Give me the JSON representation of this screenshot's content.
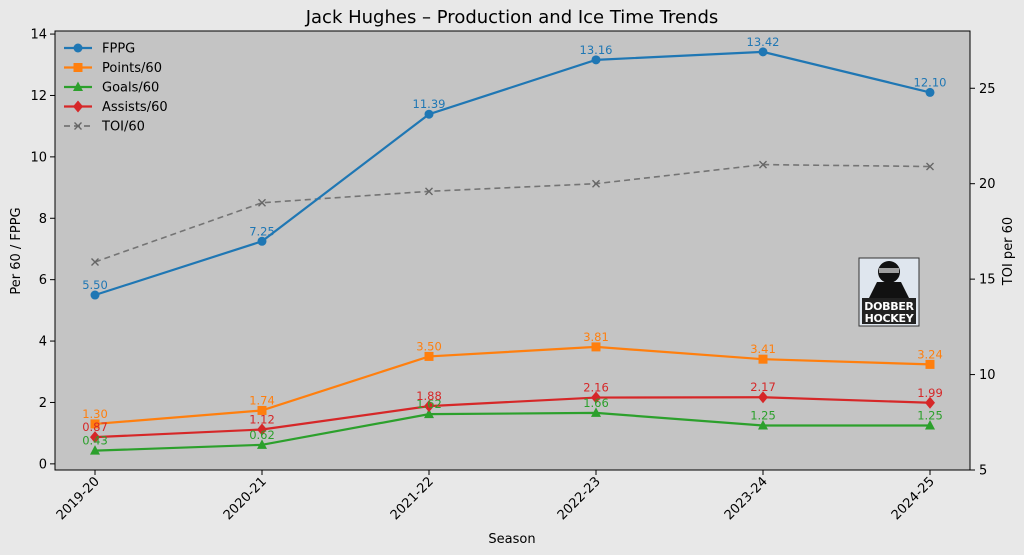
{
  "chart_data": {
    "type": "line",
    "title": "Jack Hughes – Production and Ice Time Trends",
    "xlabel": "Season",
    "ylabel": "Per 60 / FPPG",
    "ylabel_right": "TOI per 60",
    "categories": [
      "2019-20",
      "2020-21",
      "2021-22",
      "2022-23",
      "2023-24",
      "2024-25"
    ],
    "ylim": [
      -0.2,
      14.1
    ],
    "yticks": [
      0,
      2,
      4,
      6,
      8,
      10,
      12,
      14
    ],
    "ylim_right": [
      5,
      28
    ],
    "yticks_right": [
      5,
      10,
      15,
      20,
      25
    ],
    "legend_position": "top-left",
    "grid": false,
    "series": [
      {
        "name": "FPPG",
        "axis": "left",
        "color": "#1f77b4",
        "marker": "circle",
        "dashed": false,
        "labeled": true,
        "values": [
          5.5,
          7.25,
          11.39,
          13.16,
          13.42,
          12.1
        ],
        "labels": [
          "5.50",
          "7.25",
          "11.39",
          "13.16",
          "13.42",
          "12.10"
        ]
      },
      {
        "name": "Points/60",
        "axis": "left",
        "color": "#ff7f0e",
        "marker": "square",
        "dashed": false,
        "labeled": true,
        "values": [
          1.3,
          1.74,
          3.5,
          3.81,
          3.41,
          3.24
        ],
        "labels": [
          "1.30",
          "1.74",
          "3.50",
          "3.81",
          "3.41",
          "3.24"
        ]
      },
      {
        "name": "Goals/60",
        "axis": "left",
        "color": "#2ca02c",
        "marker": "triangle",
        "dashed": false,
        "labeled": true,
        "values": [
          0.43,
          0.62,
          1.62,
          1.66,
          1.25,
          1.25
        ],
        "labels": [
          "0.43",
          "0.62",
          "1.62",
          "1.66",
          "1.25",
          "1.25"
        ]
      },
      {
        "name": "Assists/60",
        "axis": "left",
        "color": "#d62728",
        "marker": "diamond",
        "dashed": false,
        "labeled": true,
        "values": [
          0.87,
          1.12,
          1.88,
          2.16,
          2.17,
          1.99
        ],
        "labels": [
          "0.87",
          "1.12",
          "1.88",
          "2.16",
          "2.17",
          "1.99"
        ]
      },
      {
        "name": "TOI/60",
        "axis": "right",
        "color": "#666666",
        "marker": "x",
        "dashed": true,
        "labeled": false,
        "values": [
          15.9,
          19.0,
          19.6,
          20.0,
          21.0,
          20.9
        ],
        "labels": []
      }
    ]
  },
  "watermark": {
    "name": "dobber-hockey-logo",
    "line1": "DOBBER",
    "line2": "HOCKEY"
  }
}
